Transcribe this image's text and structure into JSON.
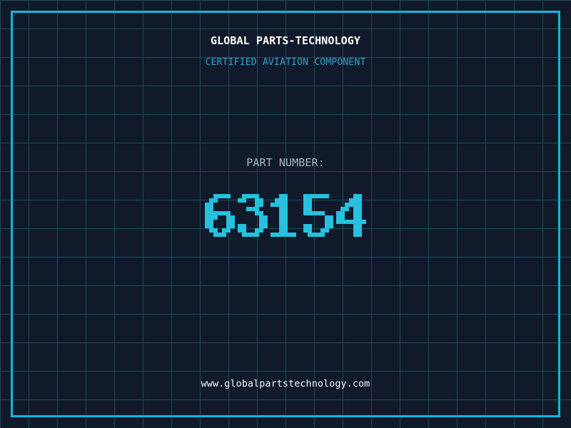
{
  "page": {
    "title": "GLOBAL PARTS-TECHNOLOGY",
    "subtitle": "CERTIFIED AVIATION COMPONENT",
    "part_label": "PART NUMBER:",
    "part_number": "63154",
    "website": "www.globalpartstechnology.com"
  },
  "colors": {
    "background": "#101a2b",
    "grid_line": "#1d4a5d",
    "frame": "#0eb8dc",
    "title": "#ffffff",
    "subtitle": "#31a0c8",
    "part_label": "#a9b3bd",
    "part_number": "#25c1de",
    "website": "#f5f8fa"
  }
}
